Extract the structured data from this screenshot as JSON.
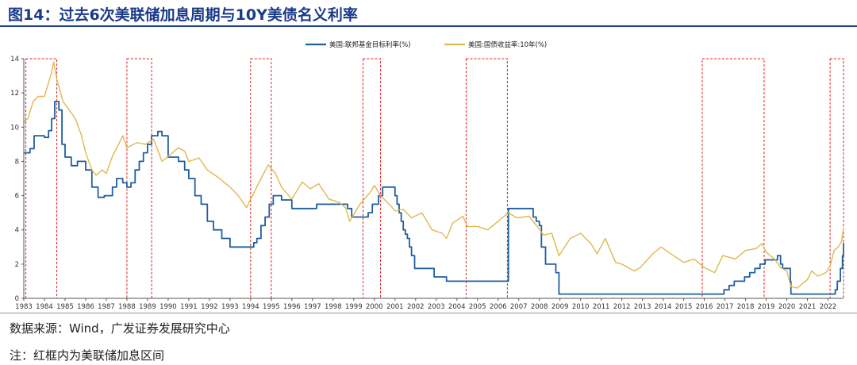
{
  "header": {
    "title": "图14：过去6次美联储加息周期与10Y美债名义利率"
  },
  "footer": {
    "source": "数据来源：Wind，广发证券发展研究中心",
    "note": "注：红框内为美联储加息区间"
  },
  "colors": {
    "fed": "#1f5fa0",
    "ust": "#e0b84c",
    "box": "#e02020",
    "title": "#1a3a8a"
  },
  "chart_data": {
    "type": "line",
    "legend_position": "top",
    "ylim": [
      0,
      14
    ],
    "yticks": [
      "0",
      "2",
      "4",
      "6",
      "8",
      "10",
      "12",
      "14"
    ],
    "xlim": [
      1983.0,
      2022.75
    ],
    "xticks": [
      "1983",
      "1984",
      "1985",
      "1986",
      "1987",
      "1988",
      "1989",
      "1990",
      "1991",
      "1992",
      "1993",
      "1994",
      "1995",
      "1996",
      "1997",
      "1998",
      "1999",
      "2000",
      "2001",
      "2002",
      "2003",
      "2004",
      "2005",
      "2006",
      "2007",
      "2008",
      "2009",
      "2010",
      "2011",
      "2012",
      "2013",
      "2014",
      "2015",
      "2016",
      "2017",
      "2018",
      "2019",
      "2020",
      "2021",
      "2022"
    ],
    "series": [
      {
        "name": "美国:联邦基金目标利率(%)",
        "color": "#1f5fa0",
        "step": true,
        "x": [
          1983.0,
          1983.3,
          1983.5,
          1984.0,
          1984.2,
          1984.35,
          1984.5,
          1984.7,
          1984.85,
          1985.0,
          1985.3,
          1985.6,
          1986.0,
          1986.3,
          1986.6,
          1986.9,
          1987.3,
          1987.5,
          1987.8,
          1988.0,
          1988.2,
          1988.4,
          1988.6,
          1988.8,
          1989.0,
          1989.2,
          1989.5,
          1989.7,
          1990.0,
          1990.5,
          1990.8,
          1991.0,
          1991.3,
          1991.6,
          1991.9,
          1992.2,
          1992.6,
          1993.0,
          1994.0,
          1994.15,
          1994.3,
          1994.5,
          1994.7,
          1994.9,
          1995.1,
          1995.5,
          1996.0,
          1997.2,
          1997.3,
          1998.7,
          1998.9,
          1999.5,
          1999.7,
          1999.9,
          2000.2,
          2000.4,
          2001.0,
          2001.1,
          2001.2,
          2001.3,
          2001.4,
          2001.5,
          2001.6,
          2001.7,
          2001.8,
          2001.95,
          2002.9,
          2003.5,
          2004.5,
          2006.5,
          2007.7,
          2007.85,
          2008.0,
          2008.1,
          2008.3,
          2008.8,
          2008.95,
          2015.95,
          2016.95,
          2017.2,
          2017.45,
          2017.95,
          2018.2,
          2018.45,
          2018.7,
          2018.95,
          2019.55,
          2019.7,
          2019.8,
          2020.17,
          2020.2,
          2022.2,
          2022.35,
          2022.45,
          2022.6,
          2022.7,
          2022.75
        ],
        "y": [
          8.5,
          8.75,
          9.5,
          9.4,
          9.8,
          10.5,
          11.5,
          11.0,
          9.0,
          8.25,
          7.75,
          8.0,
          7.5,
          6.5,
          5.9,
          6.0,
          6.5,
          7.0,
          6.75,
          6.5,
          6.75,
          7.5,
          8.0,
          8.5,
          9.0,
          9.5,
          9.75,
          9.5,
          8.25,
          8.0,
          7.5,
          7.0,
          6.0,
          5.5,
          4.5,
          4.0,
          3.5,
          3.0,
          3.0,
          3.25,
          3.5,
          4.25,
          4.75,
          5.5,
          6.0,
          5.75,
          5.25,
          5.5,
          5.5,
          5.25,
          4.75,
          4.75,
          5.0,
          5.5,
          6.0,
          6.5,
          6.0,
          5.5,
          5.0,
          4.5,
          4.0,
          3.75,
          3.5,
          3.0,
          2.5,
          1.75,
          1.25,
          1.0,
          1.0,
          5.25,
          4.75,
          4.5,
          4.25,
          3.0,
          2.0,
          1.5,
          0.25,
          0.25,
          0.5,
          0.75,
          1.0,
          1.25,
          1.5,
          1.75,
          2.0,
          2.25,
          2.5,
          2.0,
          1.75,
          1.0,
          0.25,
          0.25,
          0.5,
          1.0,
          1.75,
          2.5,
          3.25
        ]
      },
      {
        "name": "美国:国债收益率:10年(%)",
        "color": "#e0b84c",
        "step": false,
        "x": [
          1983.0,
          1983.2,
          1983.45,
          1983.7,
          1984.0,
          1984.3,
          1984.45,
          1984.6,
          1984.9,
          1985.2,
          1985.5,
          1985.8,
          1986.0,
          1986.3,
          1986.5,
          1986.8,
          1987.0,
          1987.3,
          1987.6,
          1987.8,
          1988.0,
          1988.5,
          1988.9,
          1989.3,
          1989.7,
          1990.0,
          1990.5,
          1990.8,
          1991.0,
          1991.5,
          1991.9,
          1992.5,
          1993.0,
          1993.4,
          1993.8,
          1994.0,
          1994.5,
          1994.85,
          1995.2,
          1995.5,
          1996.0,
          1996.5,
          1996.9,
          1997.3,
          1997.8,
          1998.3,
          1998.6,
          1998.8,
          1999.3,
          1999.8,
          2000.0,
          2000.3,
          2000.8,
          2001.0,
          2001.4,
          2001.8,
          2002.3,
          2002.8,
          2003.3,
          2003.5,
          2003.8,
          2004.3,
          2004.5,
          2005.0,
          2005.5,
          2006.0,
          2006.5,
          2006.9,
          2007.5,
          2007.9,
          2008.2,
          2008.6,
          2008.95,
          2009.5,
          2010.0,
          2010.5,
          2010.8,
          2011.2,
          2011.7,
          2012.0,
          2012.6,
          2012.9,
          2013.5,
          2013.9,
          2014.5,
          2015.0,
          2015.5,
          2016.0,
          2016.5,
          2016.9,
          2017.5,
          2018.0,
          2018.5,
          2018.8,
          2019.0,
          2019.4,
          2019.7,
          2020.0,
          2020.2,
          2020.5,
          2021.0,
          2021.2,
          2021.5,
          2021.9,
          2022.1,
          2022.3,
          2022.5,
          2022.65,
          2022.75
        ],
        "y": [
          10.3,
          10.5,
          11.5,
          11.8,
          11.8,
          13.0,
          13.8,
          12.8,
          11.5,
          11.0,
          10.5,
          9.5,
          8.5,
          7.5,
          7.2,
          7.5,
          7.3,
          8.3,
          9.0,
          9.5,
          8.8,
          9.1,
          9.0,
          9.3,
          8.0,
          8.3,
          8.8,
          8.6,
          8.0,
          8.2,
          7.5,
          7.0,
          6.5,
          6.0,
          5.3,
          5.8,
          7.0,
          7.8,
          7.3,
          6.5,
          5.8,
          6.8,
          6.4,
          6.7,
          5.8,
          5.6,
          5.3,
          4.5,
          5.5,
          6.2,
          6.6,
          6.0,
          5.4,
          5.1,
          5.2,
          4.7,
          5.0,
          4.0,
          3.8,
          3.5,
          4.4,
          4.8,
          4.2,
          4.2,
          4.0,
          4.5,
          5.0,
          4.7,
          4.8,
          4.2,
          3.7,
          3.8,
          2.5,
          3.5,
          3.8,
          3.2,
          2.6,
          3.5,
          2.1,
          2.0,
          1.6,
          1.8,
          2.6,
          3.0,
          2.5,
          2.1,
          2.3,
          1.8,
          1.5,
          2.5,
          2.3,
          2.8,
          2.9,
          3.2,
          2.7,
          2.3,
          1.8,
          1.6,
          0.7,
          0.6,
          1.1,
          1.6,
          1.3,
          1.5,
          1.9,
          2.8,
          3.0,
          3.3,
          4.1
        ]
      }
    ],
    "hike_periods": [
      [
        1983.1,
        1984.6
      ],
      [
        1988.0,
        1989.2
      ],
      [
        1994.0,
        1995.0
      ],
      [
        1999.45,
        2000.3
      ],
      [
        2004.45,
        2006.45
      ],
      [
        2015.9,
        2018.9
      ],
      [
        2022.1,
        2022.75
      ]
    ]
  }
}
